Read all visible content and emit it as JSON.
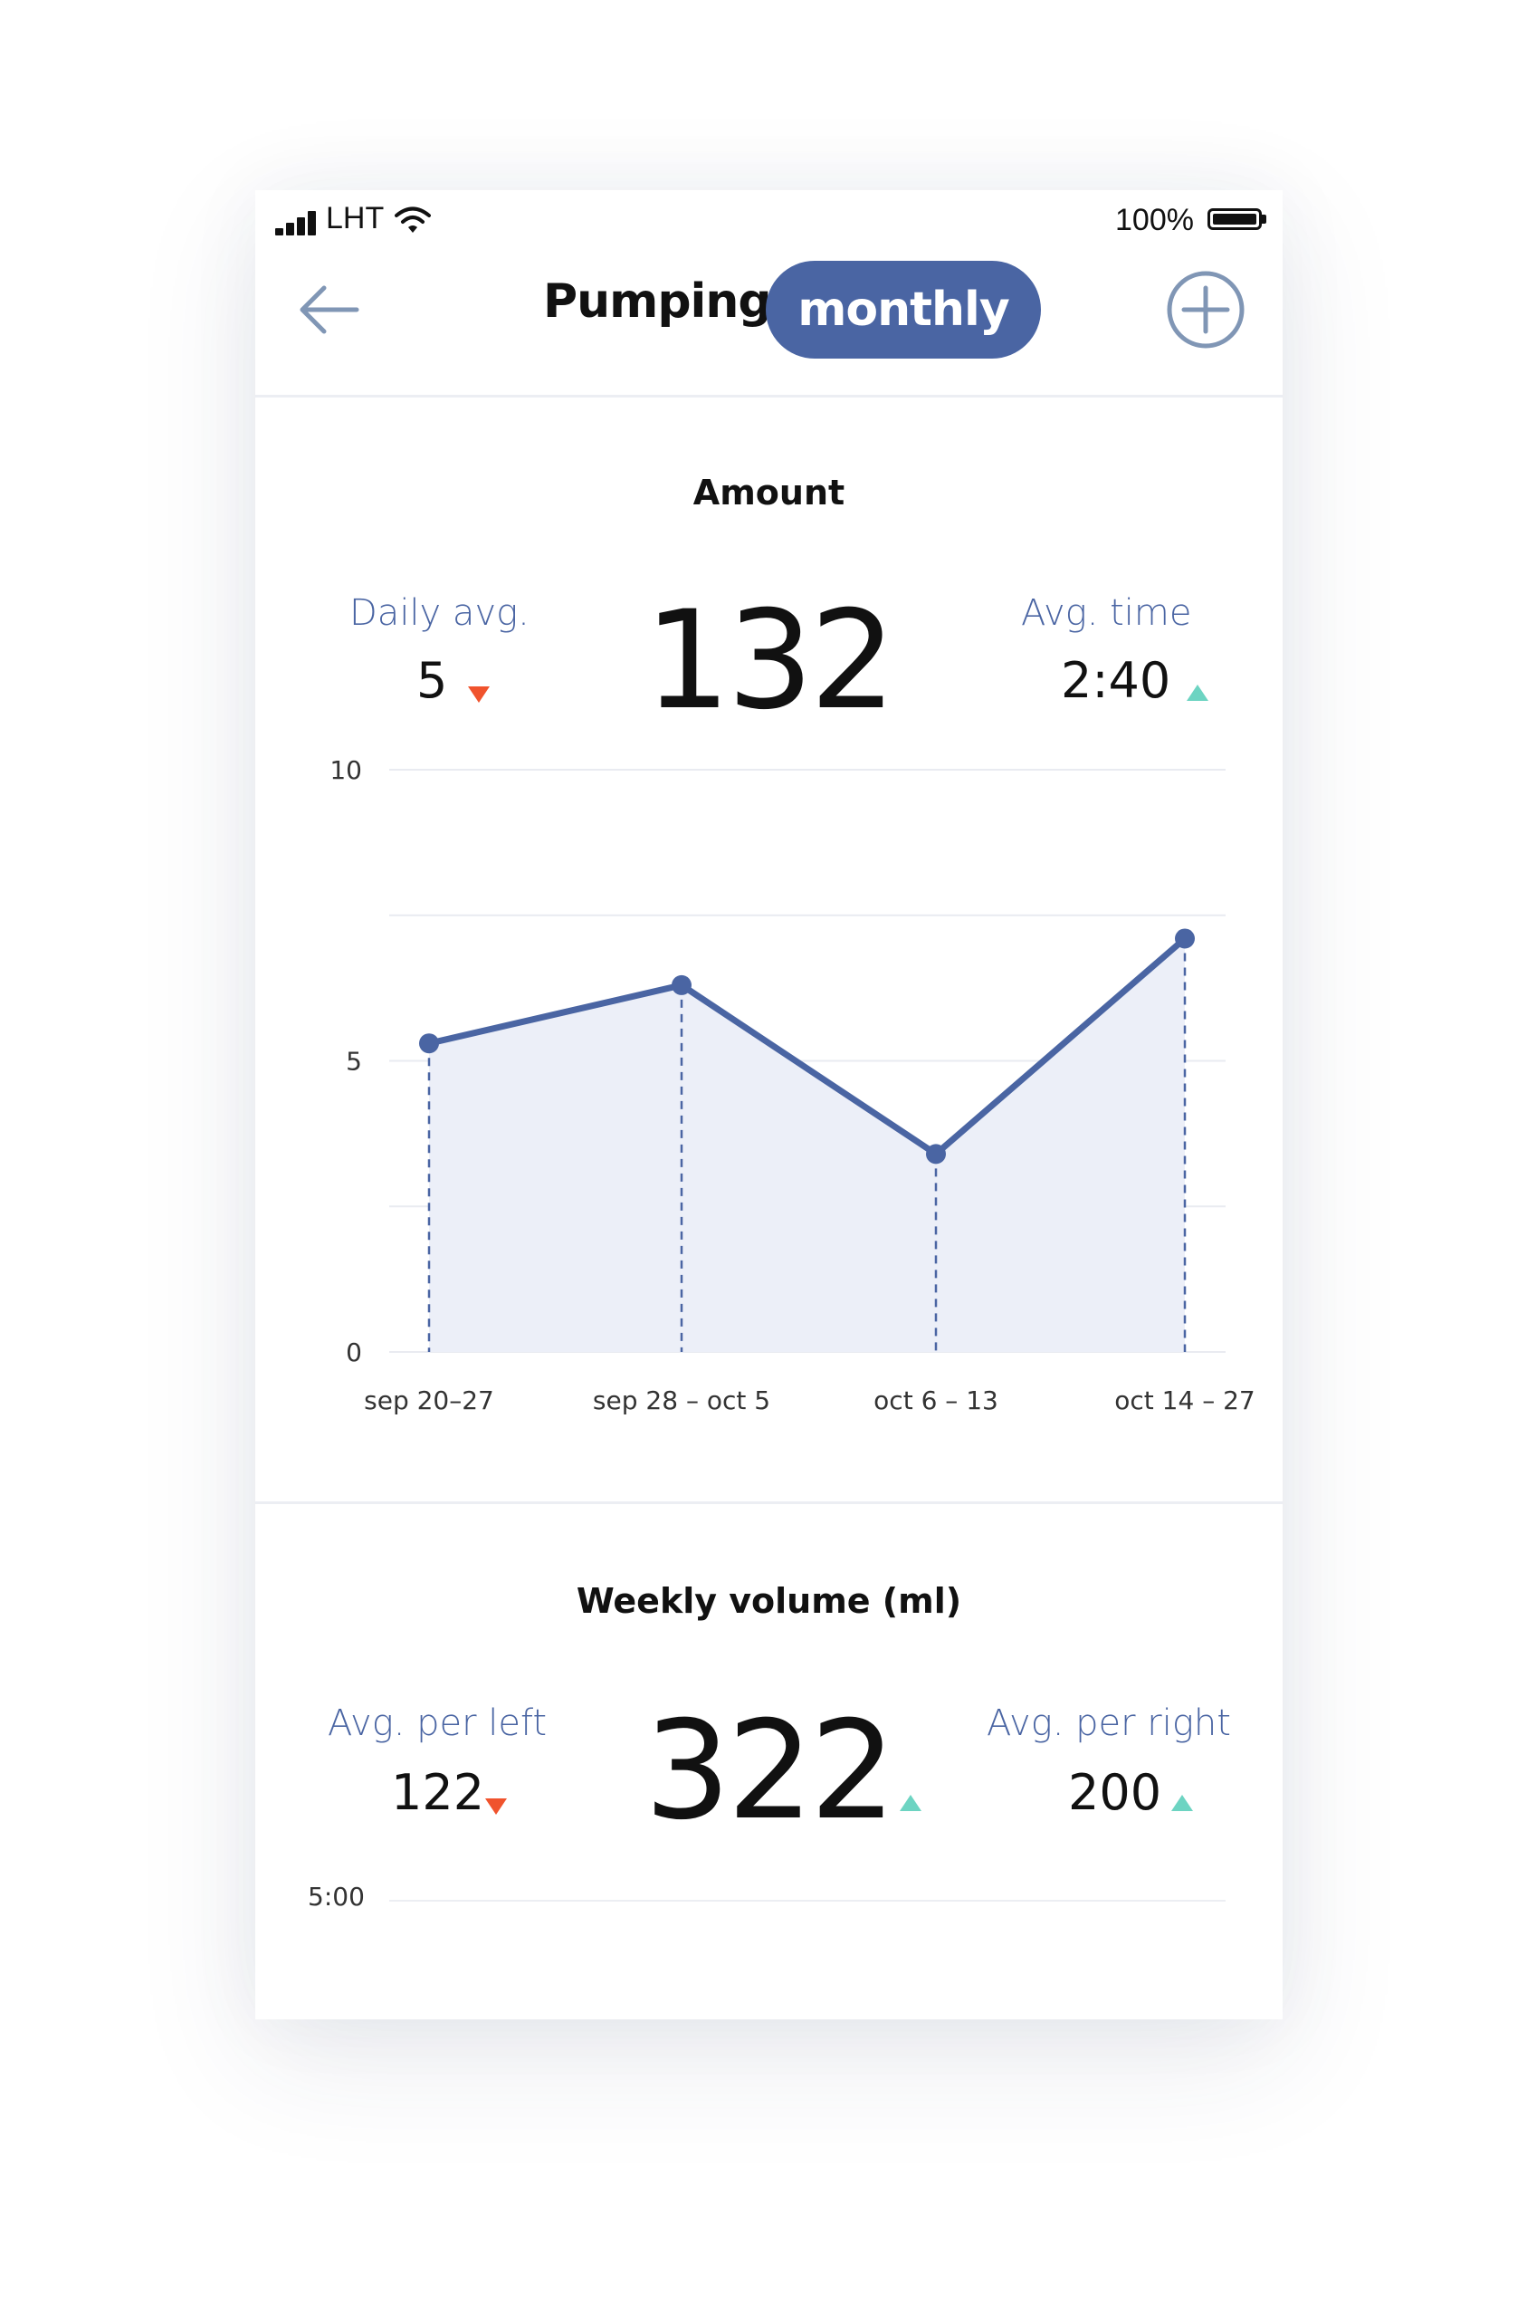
{
  "status_bar": {
    "carrier": "LHT",
    "battery_percent": "100%"
  },
  "header": {
    "title": "Pumping",
    "period_toggle": "monthly",
    "back_icon": "arrow-left-icon",
    "add_icon": "plus-circle-icon"
  },
  "amount": {
    "title": "Amount",
    "left_label": "Daily avg.",
    "left_value": "5",
    "left_trend": "down",
    "center_value": "132",
    "right_label": "Avg. time",
    "right_value": "2:40",
    "right_trend": "up"
  },
  "weekly_volume": {
    "title": "Weekly volume (ml)",
    "left_label": "Avg. per left",
    "left_value": "122",
    "left_trend": "down",
    "center_value": "322",
    "center_trend": "up",
    "right_label": "Avg. per right",
    "right_value": "200",
    "right_trend": "up",
    "axis_top_tick": "5:00"
  },
  "colors": {
    "accent": "#4a65a3",
    "line": "#4a65a3",
    "area_fill": "#eceff8",
    "trend_down": "#f0532d",
    "trend_up": "#6dd4c2"
  },
  "chart_data": {
    "type": "area",
    "categories": [
      "sep 20–27",
      "sep 28 – oct 5",
      "oct 6 – 13",
      "oct 14 – 27"
    ],
    "values": [
      5.3,
      6.3,
      3.4,
      7.1
    ],
    "y_ticks": [
      "0",
      "5",
      "10"
    ],
    "ylim": [
      0,
      10
    ],
    "grid": true
  }
}
